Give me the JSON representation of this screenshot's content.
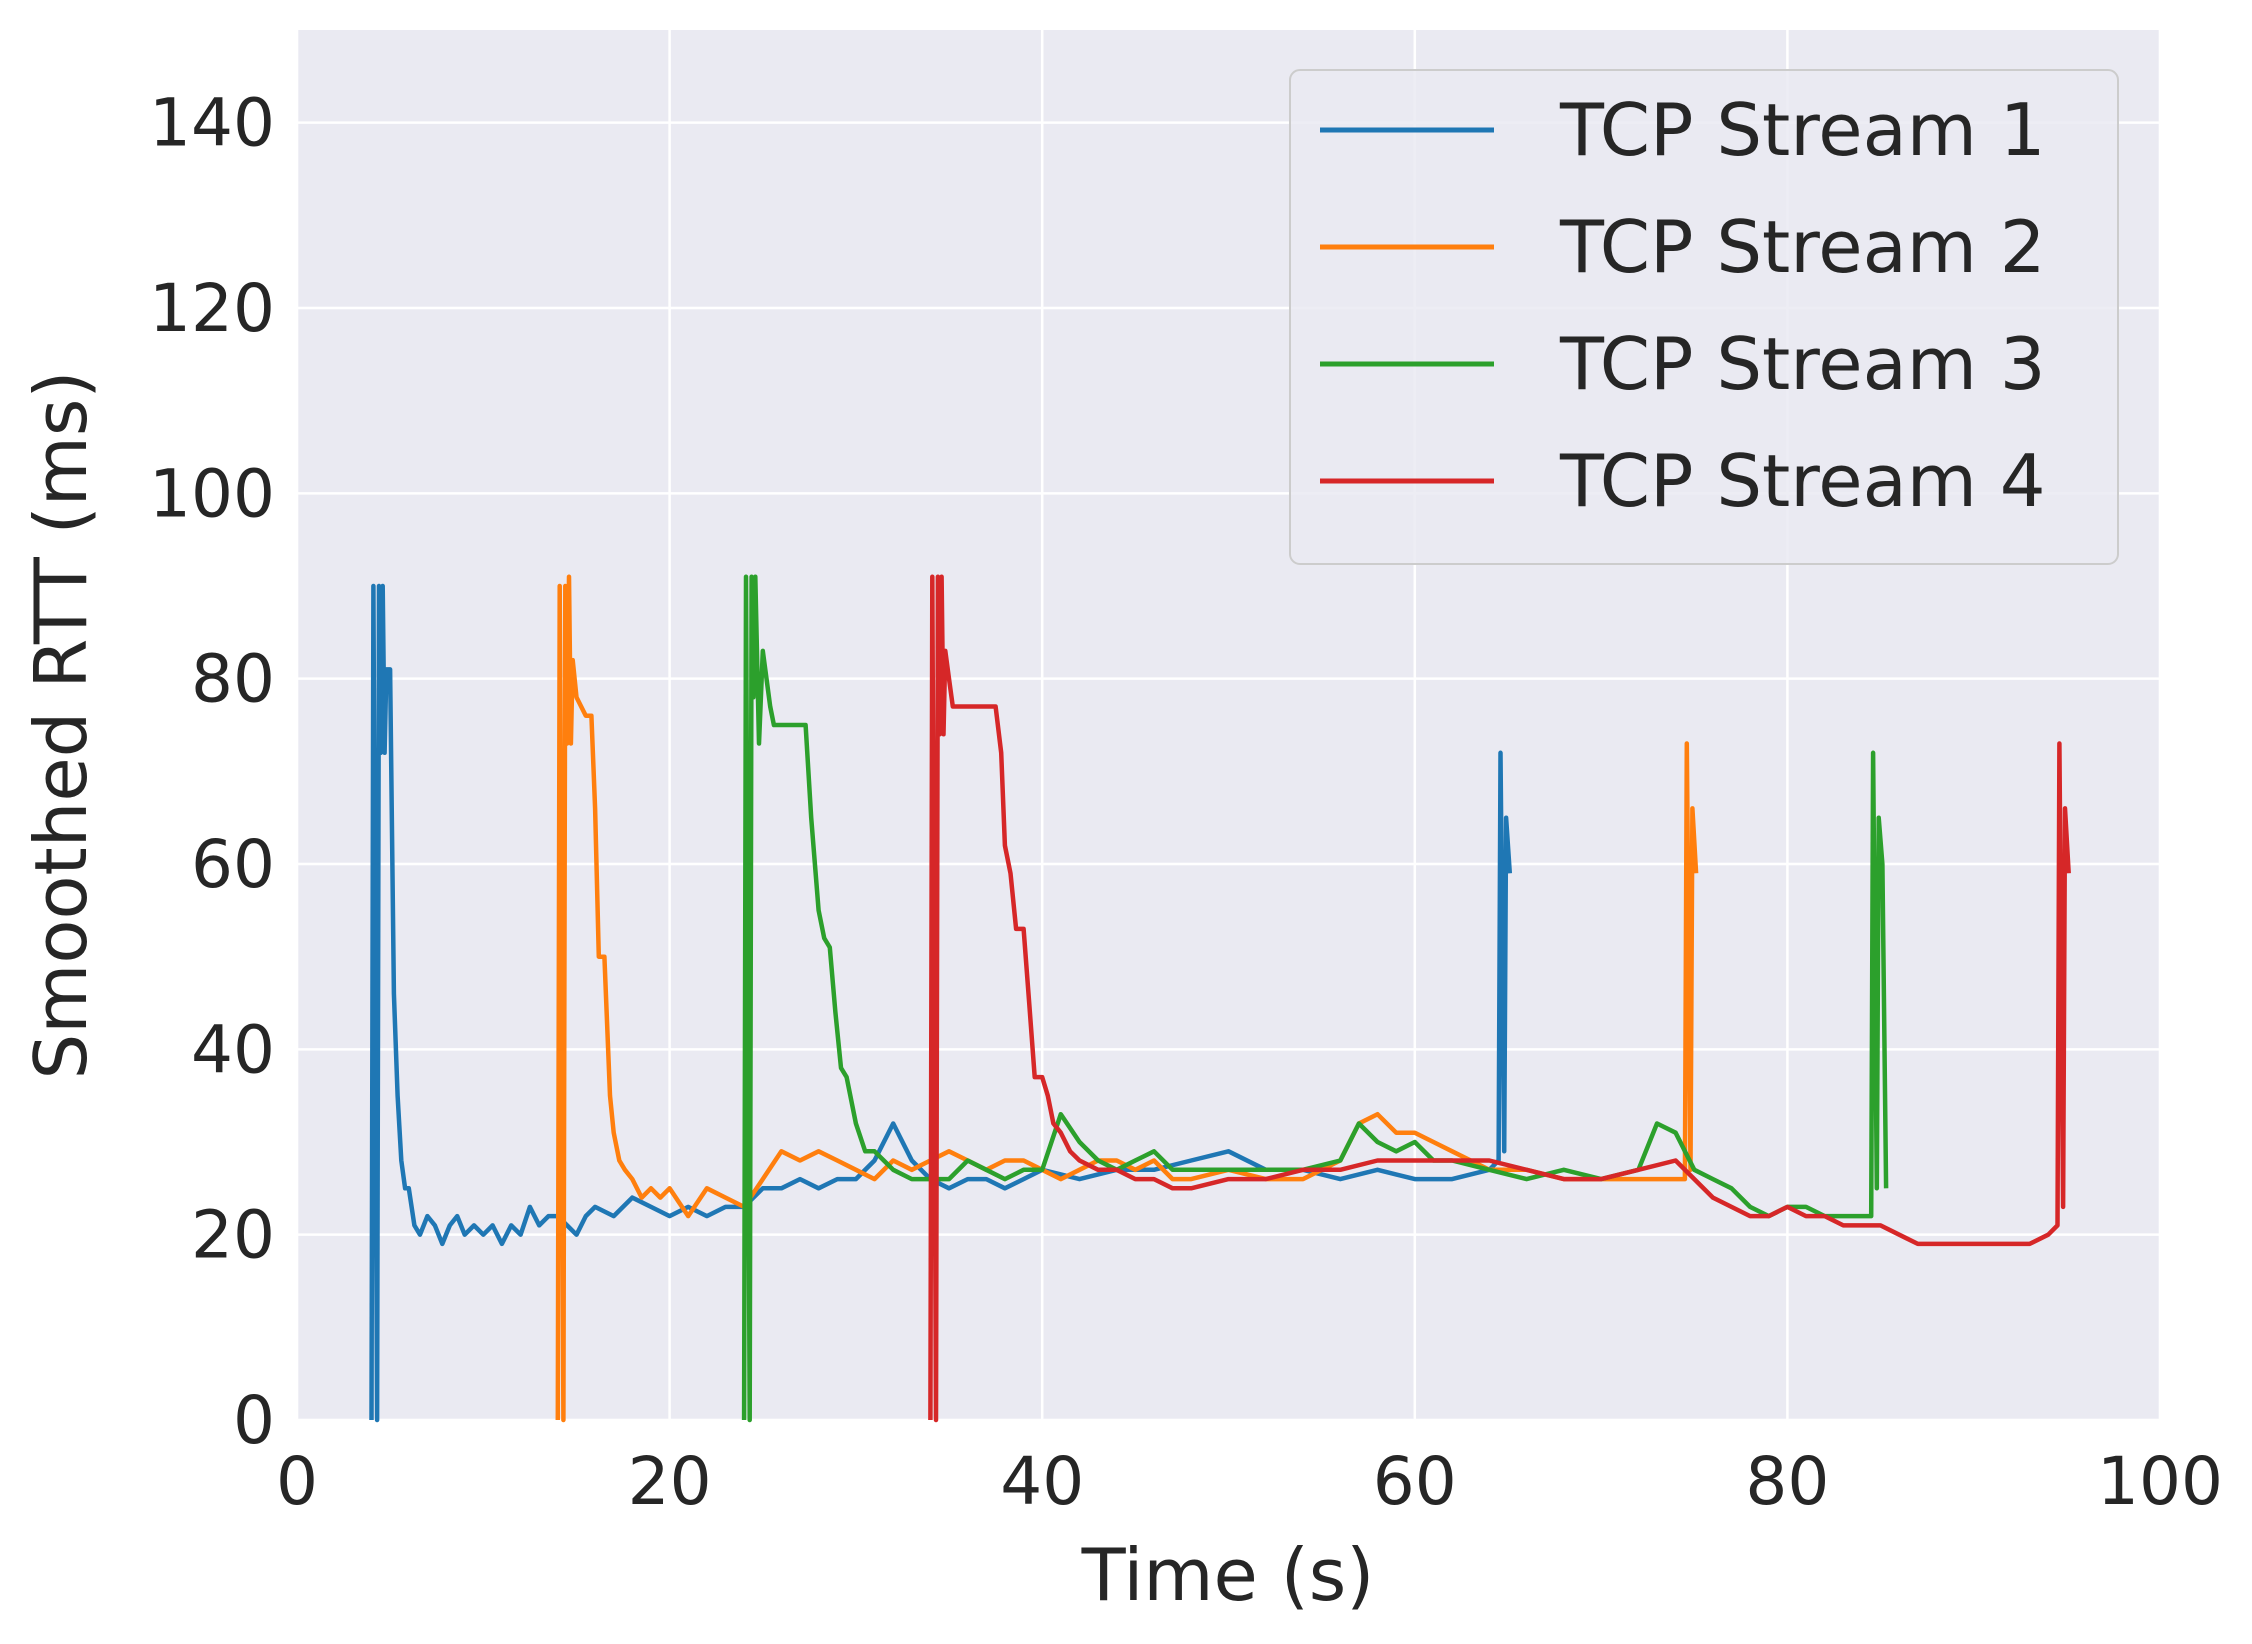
{
  "chart_data": {
    "type": "line",
    "xlabel": "Time (s)",
    "ylabel": "Smoothed RTT (ms)",
    "xlim": [
      0,
      100
    ],
    "ylim": [
      0,
      150
    ],
    "xticks": [
      0,
      20,
      40,
      60,
      80,
      100
    ],
    "yticks": [
      0,
      20,
      40,
      60,
      80,
      100,
      120,
      140
    ],
    "grid": true,
    "legend_position": "top-right",
    "series": [
      {
        "name": "TCP Stream 1",
        "color": "#1f77b4",
        "points": [
          [
            4.0,
            0
          ],
          [
            4.1,
            90
          ],
          [
            4.3,
            0
          ],
          [
            4.4,
            90
          ],
          [
            4.5,
            72
          ],
          [
            4.6,
            90
          ],
          [
            4.7,
            72
          ],
          [
            4.8,
            81
          ],
          [
            5.0,
            81
          ],
          [
            5.2,
            46
          ],
          [
            5.4,
            35
          ],
          [
            5.6,
            28
          ],
          [
            5.8,
            25
          ],
          [
            6.0,
            25
          ],
          [
            6.3,
            21
          ],
          [
            6.6,
            20
          ],
          [
            7.0,
            22
          ],
          [
            7.4,
            21
          ],
          [
            7.8,
            19
          ],
          [
            8.2,
            21
          ],
          [
            8.6,
            22
          ],
          [
            9.0,
            20
          ],
          [
            9.5,
            21
          ],
          [
            10.0,
            20
          ],
          [
            10.5,
            21
          ],
          [
            11.0,
            19
          ],
          [
            11.5,
            21
          ],
          [
            12.0,
            20
          ],
          [
            12.5,
            23
          ],
          [
            13.0,
            21
          ],
          [
            13.5,
            22
          ],
          [
            14.0,
            22
          ],
          [
            14.5,
            21
          ],
          [
            15.0,
            20
          ],
          [
            15.5,
            22
          ],
          [
            16.0,
            23
          ],
          [
            17.0,
            22
          ],
          [
            18.0,
            24
          ],
          [
            19.0,
            23
          ],
          [
            20.0,
            22
          ],
          [
            21.0,
            23
          ],
          [
            22.0,
            22
          ],
          [
            23.0,
            23
          ],
          [
            24.0,
            23
          ],
          [
            25.0,
            25
          ],
          [
            26.0,
            25
          ],
          [
            27.0,
            26
          ],
          [
            28.0,
            25
          ],
          [
            29.0,
            26
          ],
          [
            30.0,
            26
          ],
          [
            31.0,
            28
          ],
          [
            32.0,
            32
          ],
          [
            33.0,
            28
          ],
          [
            34.0,
            26
          ],
          [
            35.0,
            25
          ],
          [
            36.0,
            26
          ],
          [
            37.0,
            26
          ],
          [
            38.0,
            25
          ],
          [
            39.0,
            26
          ],
          [
            40.0,
            27
          ],
          [
            42.0,
            26
          ],
          [
            44.0,
            27
          ],
          [
            46.0,
            27
          ],
          [
            48.0,
            28
          ],
          [
            50.0,
            29
          ],
          [
            52.0,
            27
          ],
          [
            54.0,
            27
          ],
          [
            56.0,
            26
          ],
          [
            58.0,
            27
          ],
          [
            60.0,
            26
          ],
          [
            62.0,
            26
          ],
          [
            64.0,
            27
          ],
          [
            64.5,
            28
          ],
          [
            64.6,
            72
          ],
          [
            64.8,
            29
          ],
          [
            64.9,
            65
          ],
          [
            65.1,
            59
          ]
        ]
      },
      {
        "name": "TCP Stream 2",
        "color": "#ff7f0e",
        "points": [
          [
            14.0,
            0
          ],
          [
            14.1,
            90
          ],
          [
            14.3,
            0
          ],
          [
            14.4,
            90
          ],
          [
            14.5,
            73
          ],
          [
            14.6,
            91
          ],
          [
            14.7,
            73
          ],
          [
            14.8,
            82
          ],
          [
            15.0,
            78
          ],
          [
            15.5,
            76
          ],
          [
            15.8,
            76
          ],
          [
            16.0,
            66
          ],
          [
            16.2,
            50
          ],
          [
            16.5,
            50
          ],
          [
            16.8,
            35
          ],
          [
            17.0,
            31
          ],
          [
            17.3,
            28
          ],
          [
            17.6,
            27
          ],
          [
            18.0,
            26
          ],
          [
            18.5,
            24
          ],
          [
            19.0,
            25
          ],
          [
            19.5,
            24
          ],
          [
            20.0,
            25
          ],
          [
            21.0,
            22
          ],
          [
            22.0,
            25
          ],
          [
            23.0,
            24
          ],
          [
            24.0,
            23
          ],
          [
            25.0,
            26
          ],
          [
            26.0,
            29
          ],
          [
            27.0,
            28
          ],
          [
            28.0,
            29
          ],
          [
            29.0,
            28
          ],
          [
            30.0,
            27
          ],
          [
            31.0,
            26
          ],
          [
            32.0,
            28
          ],
          [
            33.0,
            27
          ],
          [
            34.0,
            28
          ],
          [
            35.0,
            29
          ],
          [
            36.0,
            28
          ],
          [
            37.0,
            27
          ],
          [
            38.0,
            28
          ],
          [
            39.0,
            28
          ],
          [
            40.0,
            27
          ],
          [
            41.0,
            26
          ],
          [
            42.0,
            27
          ],
          [
            43.0,
            28
          ],
          [
            44.0,
            28
          ],
          [
            45.0,
            27
          ],
          [
            46.0,
            28
          ],
          [
            47.0,
            26
          ],
          [
            48.0,
            26
          ],
          [
            50.0,
            27
          ],
          [
            52.0,
            26
          ],
          [
            54.0,
            26
          ],
          [
            56.0,
            28
          ],
          [
            57.0,
            32
          ],
          [
            58.0,
            33
          ],
          [
            59.0,
            31
          ],
          [
            60.0,
            31
          ],
          [
            61.0,
            30
          ],
          [
            62.0,
            29
          ],
          [
            63.0,
            28
          ],
          [
            64.0,
            27
          ],
          [
            66.0,
            27
          ],
          [
            68.0,
            26
          ],
          [
            70.0,
            26
          ],
          [
            72.0,
            26
          ],
          [
            74.0,
            26
          ],
          [
            74.5,
            26
          ],
          [
            74.6,
            73
          ],
          [
            74.8,
            27
          ],
          [
            74.9,
            66
          ],
          [
            75.1,
            59
          ]
        ]
      },
      {
        "name": "TCP Stream 3",
        "color": "#2ca02c",
        "points": [
          [
            24.0,
            0
          ],
          [
            24.1,
            91
          ],
          [
            24.3,
            0
          ],
          [
            24.4,
            91
          ],
          [
            24.5,
            78
          ],
          [
            24.6,
            91
          ],
          [
            24.8,
            73
          ],
          [
            25.0,
            83
          ],
          [
            25.2,
            80
          ],
          [
            25.4,
            77
          ],
          [
            25.6,
            75
          ],
          [
            26.0,
            75
          ],
          [
            27.0,
            75
          ],
          [
            27.3,
            75
          ],
          [
            27.6,
            65
          ],
          [
            28.0,
            55
          ],
          [
            28.3,
            52
          ],
          [
            28.6,
            51
          ],
          [
            28.9,
            44
          ],
          [
            29.2,
            38
          ],
          [
            29.5,
            37
          ],
          [
            30.0,
            32
          ],
          [
            30.5,
            29
          ],
          [
            31.0,
            29
          ],
          [
            31.5,
            28
          ],
          [
            32.0,
            27
          ],
          [
            33.0,
            26
          ],
          [
            34.0,
            26
          ],
          [
            35.0,
            26
          ],
          [
            36.0,
            28
          ],
          [
            37.0,
            27
          ],
          [
            38.0,
            26
          ],
          [
            39.0,
            27
          ],
          [
            40.0,
            27
          ],
          [
            41.0,
            33
          ],
          [
            42.0,
            30
          ],
          [
            43.0,
            28
          ],
          [
            44.0,
            27
          ],
          [
            45.0,
            28
          ],
          [
            46.0,
            29
          ],
          [
            47.0,
            27
          ],
          [
            48.0,
            27
          ],
          [
            50.0,
            27
          ],
          [
            52.0,
            27
          ],
          [
            54.0,
            27
          ],
          [
            56.0,
            28
          ],
          [
            57.0,
            32
          ],
          [
            58.0,
            30
          ],
          [
            59.0,
            29
          ],
          [
            60.0,
            30
          ],
          [
            61.0,
            28
          ],
          [
            62.0,
            28
          ],
          [
            64.0,
            27
          ],
          [
            66.0,
            26
          ],
          [
            68.0,
            27
          ],
          [
            70.0,
            26
          ],
          [
            72.0,
            27
          ],
          [
            73.0,
            32
          ],
          [
            74.0,
            31
          ],
          [
            75.0,
            27
          ],
          [
            76.0,
            26
          ],
          [
            77.0,
            25
          ],
          [
            78.0,
            23
          ],
          [
            79.0,
            22
          ],
          [
            80.0,
            23
          ],
          [
            81.0,
            23
          ],
          [
            82.0,
            22
          ],
          [
            83.0,
            22
          ],
          [
            84.0,
            22
          ],
          [
            84.5,
            22
          ],
          [
            84.6,
            72
          ],
          [
            84.8,
            25
          ],
          [
            84.9,
            65
          ],
          [
            85.1,
            60
          ],
          [
            85.3,
            25
          ]
        ]
      },
      {
        "name": "TCP Stream 4",
        "color": "#d62728",
        "points": [
          [
            34.0,
            0
          ],
          [
            34.1,
            91
          ],
          [
            34.3,
            0
          ],
          [
            34.4,
            91
          ],
          [
            34.5,
            74
          ],
          [
            34.6,
            91
          ],
          [
            34.7,
            74
          ],
          [
            34.8,
            83
          ],
          [
            35.0,
            80
          ],
          [
            35.2,
            77
          ],
          [
            35.5,
            77
          ],
          [
            36.0,
            77
          ],
          [
            37.0,
            77
          ],
          [
            37.5,
            77
          ],
          [
            37.8,
            72
          ],
          [
            38.0,
            62
          ],
          [
            38.3,
            59
          ],
          [
            38.6,
            53
          ],
          [
            39.0,
            53
          ],
          [
            39.3,
            45
          ],
          [
            39.6,
            37
          ],
          [
            40.0,
            37
          ],
          [
            40.3,
            35
          ],
          [
            40.6,
            32
          ],
          [
            41.0,
            31
          ],
          [
            41.5,
            29
          ],
          [
            42.0,
            28
          ],
          [
            43.0,
            27
          ],
          [
            44.0,
            27
          ],
          [
            45.0,
            26
          ],
          [
            46.0,
            26
          ],
          [
            47.0,
            25
          ],
          [
            48.0,
            25
          ],
          [
            50.0,
            26
          ],
          [
            52.0,
            26
          ],
          [
            54.0,
            27
          ],
          [
            56.0,
            27
          ],
          [
            58.0,
            28
          ],
          [
            60.0,
            28
          ],
          [
            62.0,
            28
          ],
          [
            64.0,
            28
          ],
          [
            66.0,
            27
          ],
          [
            68.0,
            26
          ],
          [
            70.0,
            26
          ],
          [
            72.0,
            27
          ],
          [
            74.0,
            28
          ],
          [
            75.0,
            26
          ],
          [
            76.0,
            24
          ],
          [
            77.0,
            23
          ],
          [
            78.0,
            22
          ],
          [
            79.0,
            22
          ],
          [
            80.0,
            23
          ],
          [
            81.0,
            22
          ],
          [
            82.0,
            22
          ],
          [
            83.0,
            21
          ],
          [
            84.0,
            21
          ],
          [
            85.0,
            21
          ],
          [
            86.0,
            20
          ],
          [
            87.0,
            19
          ],
          [
            88.0,
            19
          ],
          [
            89.0,
            19
          ],
          [
            90.0,
            19
          ],
          [
            91.0,
            19
          ],
          [
            92.0,
            19
          ],
          [
            93.0,
            19
          ],
          [
            94.0,
            20
          ],
          [
            94.5,
            21
          ],
          [
            94.6,
            73
          ],
          [
            94.8,
            23
          ],
          [
            94.9,
            66
          ],
          [
            95.1,
            59
          ]
        ]
      }
    ]
  }
}
